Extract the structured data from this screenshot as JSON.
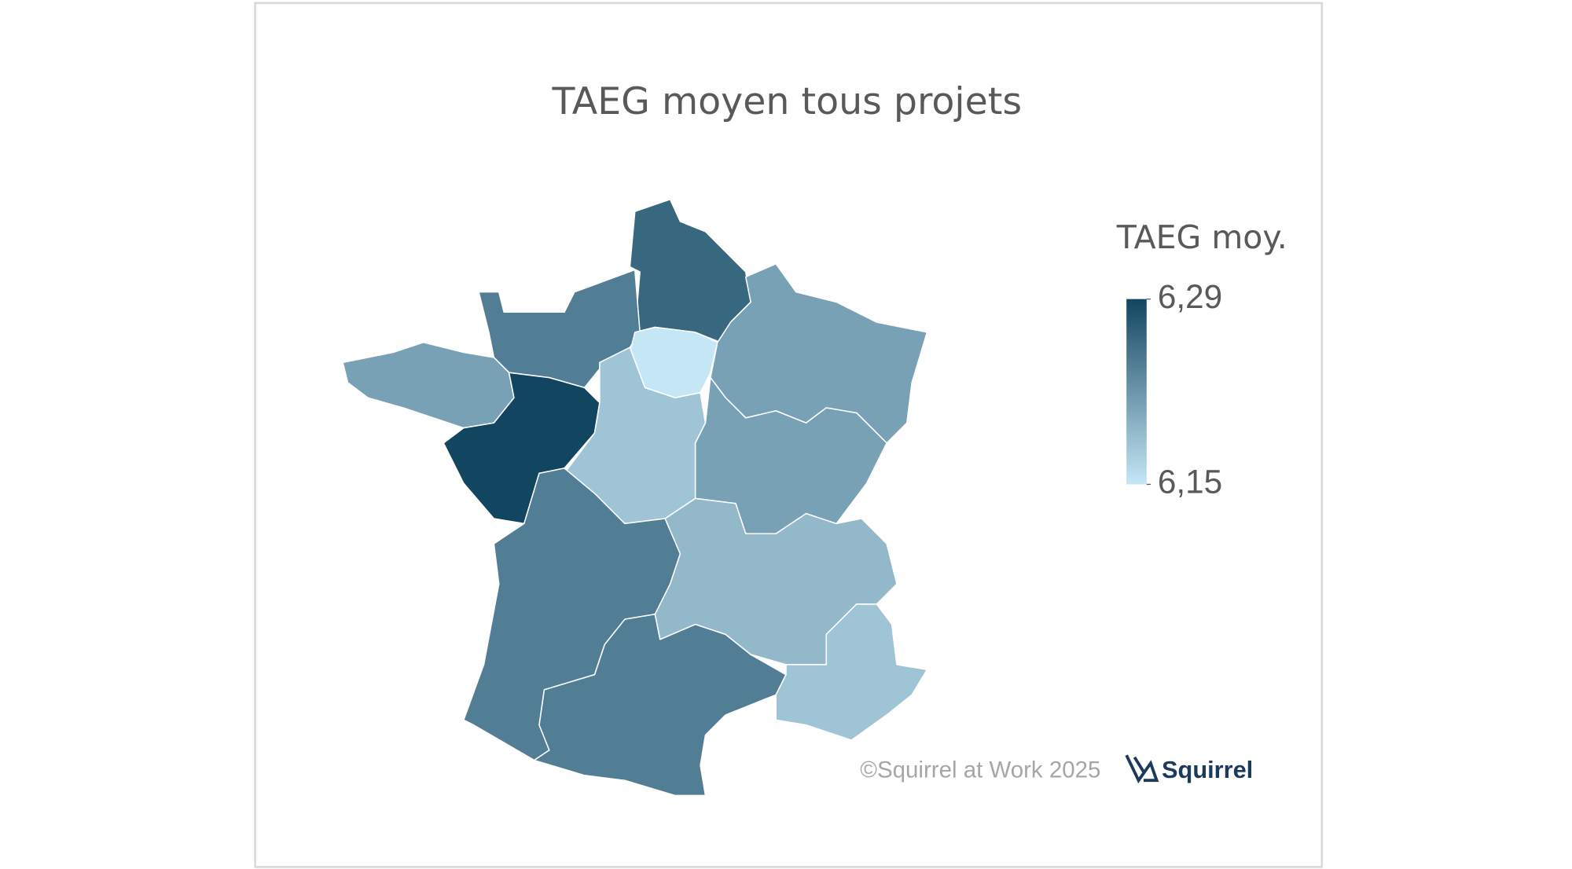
{
  "chart_data": {
    "type": "choropleth",
    "title": "TAEG moyen tous projets",
    "legend_title": "TAEG moy.",
    "values": [
      6.26,
      6.24,
      6.15,
      6.21,
      6.21,
      6.29,
      6.18,
      6.21,
      6.24,
      6.24,
      6.19,
      6.18
    ],
    "color_range": [
      "#c5e6f5",
      "#124560"
    ],
    "legend_lim": [
      6.15,
      6.29
    ],
    "legend_ticks": [
      {
        "value": 6.29,
        "label": "6,29"
      },
      {
        "value": 6.15,
        "label": "6,15"
      }
    ],
    "credit": "©Squirrel at Work 2025",
    "logo": "Squirrel"
  }
}
